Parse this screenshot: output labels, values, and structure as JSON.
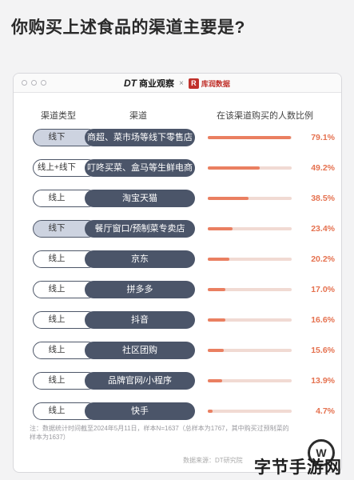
{
  "page": {
    "title": "你购买上述食品的渠道主要是?"
  },
  "card": {
    "brand_dt": "DT",
    "brand_name": "商业观察",
    "brand_sep": "×",
    "brand_partner_logo": "R",
    "brand_partner": "库润数据"
  },
  "chart_data": {
    "type": "bar",
    "columns": [
      "渠道类型",
      "渠道",
      "在该渠道购买的人数比例"
    ],
    "categories": [
      "商超、菜市场等线下零售店",
      "叮咚买菜、盒马等生鲜电商",
      "淘宝天猫",
      "餐厅窗口/预制菜专卖店",
      "京东",
      "拼多多",
      "抖音",
      "社区团购",
      "品牌官网/小程序",
      "快手"
    ],
    "channel_types": [
      "线下",
      "线上+线下",
      "线上",
      "线下",
      "线上",
      "线上",
      "线上",
      "线上",
      "线上",
      "线上"
    ],
    "values": [
      79.1,
      49.2,
      38.5,
      23.4,
      20.2,
      17.0,
      16.6,
      15.6,
      13.9,
      4.7
    ],
    "value_labels": [
      "79.1%",
      "49.2%",
      "38.5%",
      "23.4%",
      "20.2%",
      "17.0%",
      "16.6%",
      "15.6%",
      "13.9%",
      "4.7%"
    ],
    "xlim": [
      0,
      80
    ],
    "colors": {
      "bar": "#ea7f61",
      "track": "#f1dad3",
      "channel_pill": "#4b5569",
      "offline_type": "#cdd3e0",
      "online_type": "#ffffff",
      "label": "#e5714f"
    }
  },
  "footer": {
    "note": "注：数据统计时间截至2024年5月11日，样本N=1637（总样本为1767，其中购买过预制菜的样本为1637）",
    "source": "数据来源：DT研究院"
  },
  "watermark": {
    "badge": "W",
    "text": "字节手游网"
  }
}
